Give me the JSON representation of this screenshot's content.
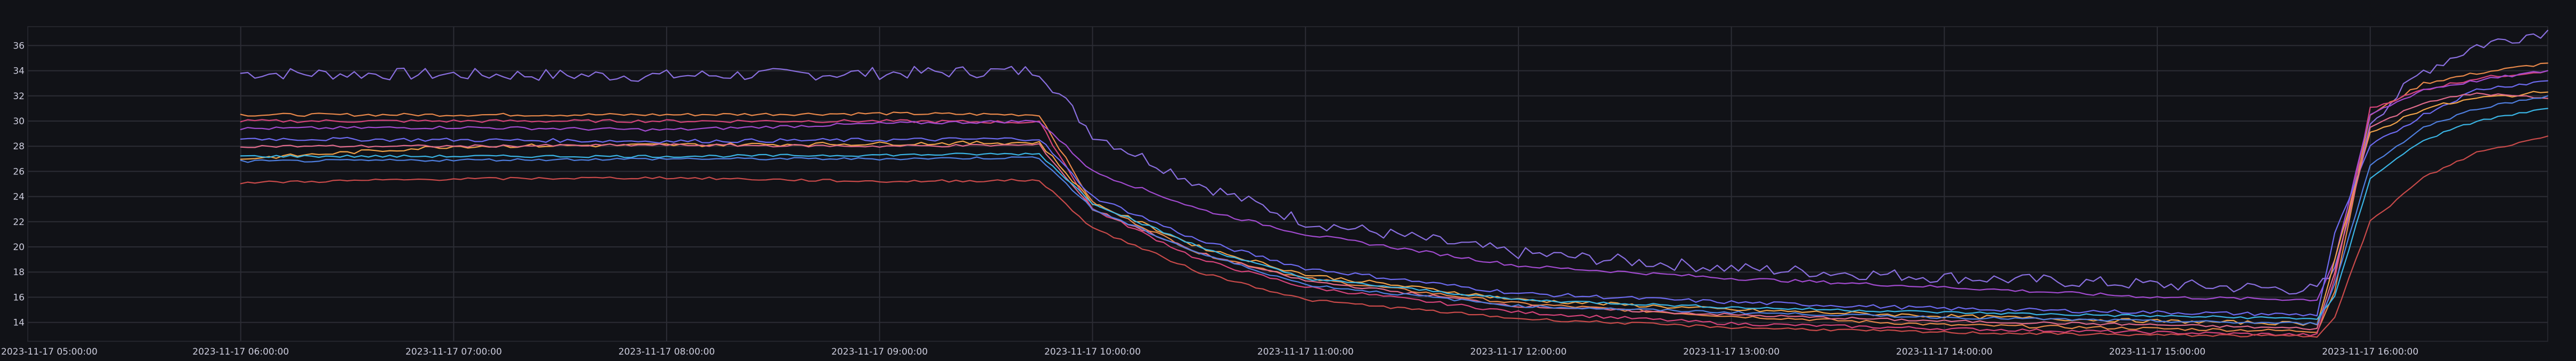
{
  "chart_data": {
    "type": "line",
    "title": "",
    "xlabel": "",
    "ylabel": "",
    "x_ticks": [
      "2023-11-17 05:00:00",
      "2023-11-17 06:00:00",
      "2023-11-17 07:00:00",
      "2023-11-17 08:00:00",
      "2023-11-17 09:00:00",
      "2023-11-17 10:00:00",
      "2023-11-17 11:00:00",
      "2023-11-17 12:00:00",
      "2023-11-17 13:00:00",
      "2023-11-17 14:00:00",
      "2023-11-17 15:00:00",
      "2023-11-17 16:00:00"
    ],
    "xlim": [
      "2023-11-17 05:00:00",
      "2023-11-17 16:50:00"
    ],
    "y_ticks": [
      14,
      16,
      18,
      20,
      22,
      24,
      26,
      28,
      30,
      32,
      34,
      36
    ],
    "ylim": [
      12.5,
      37.5
    ],
    "grid": true,
    "legend": "none",
    "x_times": [
      "2023-11-17 06:00:00",
      "2023-11-17 07:00:00",
      "2023-11-17 08:00:00",
      "2023-11-17 09:00:00",
      "2023-11-17 09:45:00",
      "2023-11-17 10:00:00",
      "2023-11-17 10:30:00",
      "2023-11-17 11:00:00",
      "2023-11-17 12:00:00",
      "2023-11-17 13:00:00",
      "2023-11-17 14:00:00",
      "2023-11-17 15:00:00",
      "2023-11-17 15:45:00",
      "2023-11-17 15:50:00",
      "2023-11-17 16:00:00",
      "2023-11-17 16:15:00",
      "2023-11-17 16:30:00",
      "2023-11-17 16:50:00"
    ],
    "series": [
      {
        "color": "#8a6fe0",
        "noise": 0.5,
        "values": [
          33.8,
          33.7,
          33.6,
          33.8,
          34.0,
          29.0,
          25.0,
          22.0,
          19.5,
          18.3,
          17.6,
          17.0,
          16.6,
          18.0,
          30.0,
          34.0,
          36.0,
          37.2
        ]
      },
      {
        "color": "#e8884a",
        "noise": 0.12,
        "values": [
          30.5,
          30.5,
          30.5,
          30.6,
          30.5,
          23.5,
          19.5,
          17.5,
          15.5,
          14.5,
          13.8,
          13.5,
          13.3,
          16.5,
          30.5,
          33.0,
          33.8,
          34.6
        ]
      },
      {
        "color": "#d6447a",
        "noise": 0.12,
        "values": [
          30.0,
          30.0,
          30.0,
          30.0,
          29.9,
          23.0,
          19.0,
          16.8,
          14.8,
          13.9,
          13.5,
          13.2,
          13.0,
          17.5,
          31.0,
          32.5,
          33.4,
          34.0
        ]
      },
      {
        "color": "#a24bd0",
        "noise": 0.12,
        "values": [
          29.4,
          29.5,
          29.3,
          29.8,
          30.0,
          26.0,
          23.0,
          21.0,
          18.5,
          17.5,
          16.8,
          16.0,
          15.8,
          19.0,
          30.5,
          32.5,
          33.2,
          34.0
        ]
      },
      {
        "color": "#6d6bf0",
        "noise": 0.15,
        "values": [
          28.6,
          28.5,
          28.4,
          28.5,
          28.6,
          24.0,
          20.5,
          18.3,
          16.3,
          15.6,
          15.1,
          14.8,
          14.6,
          21.0,
          28.0,
          30.5,
          32.5,
          33.2
        ]
      },
      {
        "color": "#f0a34a",
        "noise": 0.15,
        "values": [
          27.0,
          28.0,
          28.1,
          28.2,
          28.3,
          23.5,
          20.0,
          17.8,
          15.8,
          15.0,
          14.5,
          14.1,
          13.9,
          19.0,
          29.0,
          31.0,
          31.8,
          32.3
        ]
      },
      {
        "color": "#e06b8c",
        "noise": 0.1,
        "values": [
          28.0,
          28.0,
          28.1,
          28.0,
          28.1,
          23.0,
          19.5,
          17.3,
          15.3,
          14.6,
          14.1,
          13.8,
          13.5,
          18.0,
          29.5,
          31.5,
          32.2,
          31.8
        ]
      },
      {
        "color": "#3ab5e5",
        "noise": 0.1,
        "values": [
          27.2,
          27.2,
          27.2,
          27.3,
          27.4,
          23.5,
          20.0,
          17.5,
          15.8,
          15.2,
          14.8,
          14.5,
          14.3,
          16.0,
          25.5,
          28.5,
          30.0,
          31.0
        ]
      },
      {
        "color": "#4f7fe0",
        "noise": 0.1,
        "values": [
          26.8,
          26.9,
          27.0,
          27.0,
          27.1,
          23.0,
          19.5,
          17.0,
          15.3,
          14.8,
          14.4,
          14.1,
          13.9,
          17.0,
          26.5,
          29.5,
          31.0,
          32.0
        ]
      },
      {
        "color": "#c94a4a",
        "noise": 0.1,
        "values": [
          25.1,
          25.4,
          25.5,
          25.2,
          25.3,
          21.5,
          18.0,
          15.8,
          14.3,
          13.6,
          13.2,
          13.0,
          12.9,
          14.5,
          22.0,
          25.5,
          27.5,
          28.8
        ]
      }
    ]
  }
}
